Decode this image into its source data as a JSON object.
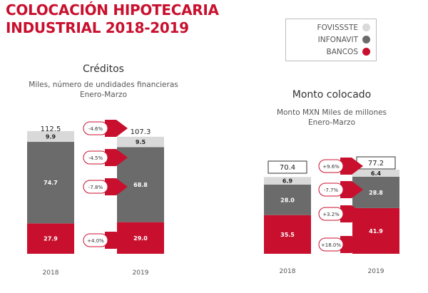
{
  "header": {
    "title_line1": "COLOCACIÓN HIPOTECARIA",
    "title_line2": "INDUSTRIAL 2018-2019"
  },
  "legend": [
    {
      "label": "FOVISSSTE",
      "color": "#d9d9d9"
    },
    {
      "label": "INFONAVIT",
      "color": "#6b6b6b"
    },
    {
      "label": "BANCOS",
      "color": "#c8102e"
    }
  ],
  "colors": {
    "brand": "#c8102e",
    "fovissste": "#d9d9d9",
    "infonavit": "#6b6b6b",
    "bancos": "#c8102e"
  },
  "chart_data": [
    {
      "type": "bar",
      "stacked": true,
      "title": "Créditos",
      "subtitle": "Miles, número de undidades financieras",
      "period": "Enero-Marzo",
      "categories": [
        "2018",
        "2019"
      ],
      "series": [
        {
          "name": "BANCOS",
          "values": [
            27.9,
            29.0
          ],
          "changes": "+4.0%"
        },
        {
          "name": "INFONAVIT",
          "values": [
            74.7,
            68.8
          ],
          "changes": "-7.8%"
        },
        {
          "name": "FOVISSSTE",
          "values": [
            9.9,
            9.5
          ],
          "changes": "-4.5%"
        }
      ],
      "totals": [
        "112.5",
        "107.3"
      ],
      "total_change": "-4.6%",
      "totals_boxed": false
    },
    {
      "type": "bar",
      "stacked": true,
      "title": "Monto colocado",
      "subtitle": "Monto MXN Miles de millones",
      "period": "Enero-Marzo",
      "categories": [
        "2018",
        "2019"
      ],
      "series": [
        {
          "name": "BANCOS",
          "values": [
            35.5,
            41.9
          ],
          "changes": "+18.0%"
        },
        {
          "name": "INFONAVIT",
          "values": [
            28.0,
            28.8
          ],
          "changes": "+3.2%"
        },
        {
          "name": "FOVISSSTE",
          "values": [
            6.9,
            6.4
          ],
          "changes": "-7.7%"
        }
      ],
      "totals": [
        "70.4",
        "77.2"
      ],
      "total_change": "+9.6%",
      "totals_boxed": true
    }
  ]
}
